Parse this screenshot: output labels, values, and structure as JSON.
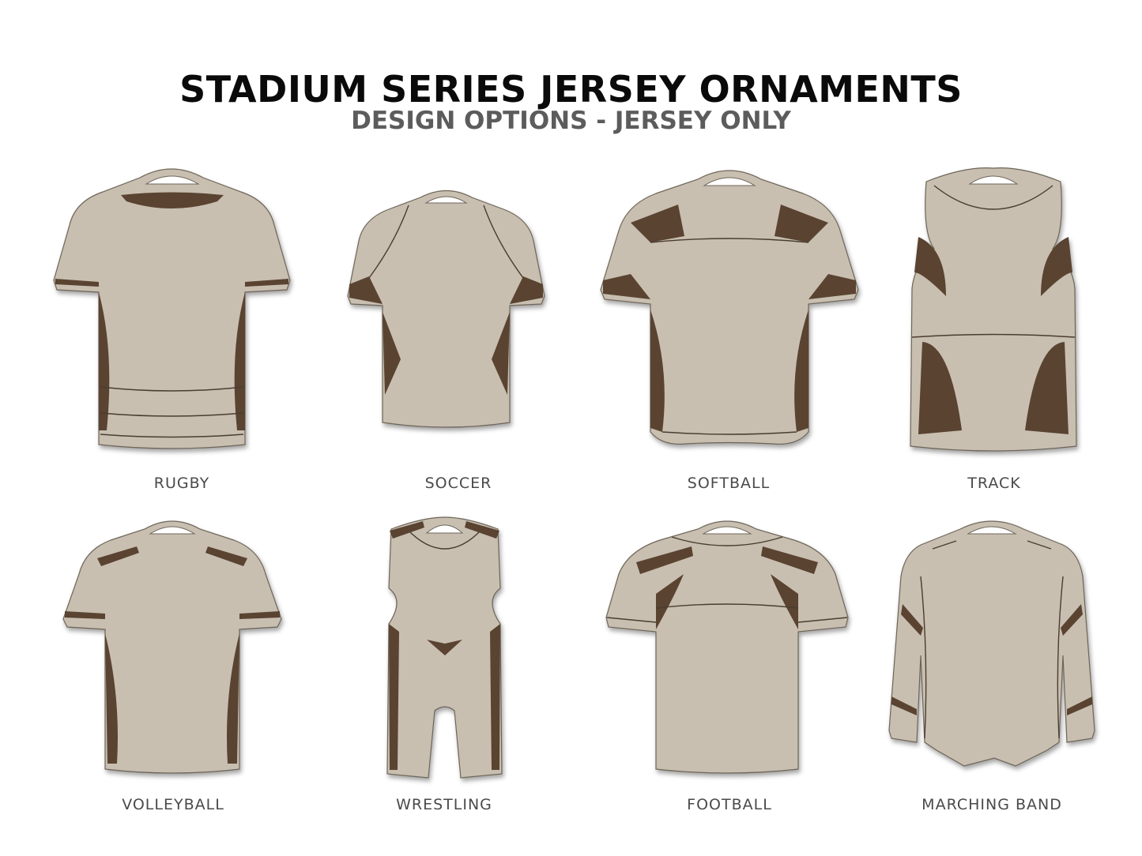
{
  "header": {
    "title": "STADIUM SERIES JERSEY ORNAMENTS",
    "subtitle": "DESIGN OPTIONS - JERSEY ONLY"
  },
  "colors": {
    "wood": "#c8bfb1",
    "accent": "#5a4331"
  },
  "jerseys": [
    {
      "label": "RUGBY",
      "icon": "short-sleeve-jersey"
    },
    {
      "label": "SOCCER",
      "icon": "short-sleeve-jersey"
    },
    {
      "label": "SOFTBALL",
      "icon": "short-sleeve-jersey"
    },
    {
      "label": "TRACK",
      "icon": "tank-jersey"
    },
    {
      "label": "VOLLEYBALL",
      "icon": "short-sleeve-jersey"
    },
    {
      "label": "WRESTLING",
      "icon": "singlet-jersey"
    },
    {
      "label": "FOOTBALL",
      "icon": "short-sleeve-jersey"
    },
    {
      "label": "MARCHING BAND",
      "icon": "long-sleeve-jersey"
    }
  ]
}
